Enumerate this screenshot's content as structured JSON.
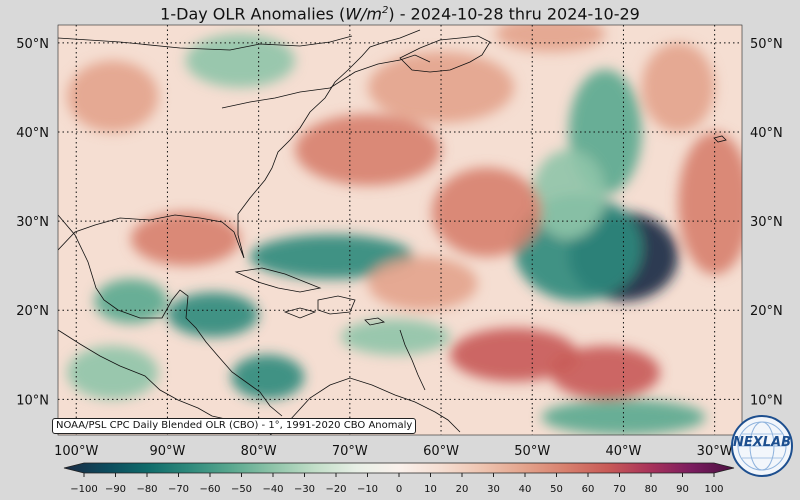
{
  "title": {
    "prefix": "1-Day OLR Anomalies (",
    "unit_base": "W/m",
    "unit_exp": "2",
    "suffix": ") - 2024-10-28 thru 2024-10-29"
  },
  "map": {
    "lat_labels": [
      "50°N",
      "40°N",
      "30°N",
      "20°N",
      "10°N"
    ],
    "lat_values": [
      50,
      40,
      30,
      20,
      10
    ],
    "lon_labels": [
      "100°W",
      "90°W",
      "80°W",
      "70°W",
      "60°W",
      "50°W",
      "40°W",
      "30°W"
    ],
    "lon_values": [
      -100,
      -90,
      -80,
      -70,
      -60,
      -50,
      -40,
      -30
    ],
    "lat_range": [
      6,
      52
    ],
    "lon_range": [
      -102,
      -27
    ]
  },
  "anomalies": [
    {
      "lon": -40,
      "lat": 26,
      "value": -90,
      "spread_lon": 6,
      "spread_lat": 5
    },
    {
      "lon": -45,
      "lat": 27,
      "value": -55,
      "spread_lon": 7,
      "spread_lat": 6
    },
    {
      "lon": -42,
      "lat": 40,
      "value": -45,
      "spread_lon": 4,
      "spread_lat": 7
    },
    {
      "lon": -46,
      "lat": 33,
      "value": -35,
      "spread_lon": 4,
      "spread_lat": 5
    },
    {
      "lon": -72,
      "lat": 26,
      "value": -55,
      "spread_lon": 9,
      "spread_lat": 2.5
    },
    {
      "lon": -85,
      "lat": 19.5,
      "value": -55,
      "spread_lon": 5,
      "spread_lat": 2.5
    },
    {
      "lon": -79,
      "lat": 12.5,
      "value": -55,
      "spread_lon": 4,
      "spread_lat": 2.5
    },
    {
      "lon": -94,
      "lat": 21,
      "value": -40,
      "spread_lon": 4,
      "spread_lat": 2.5
    },
    {
      "lon": -40,
      "lat": 8,
      "value": -50,
      "spread_lon": 9,
      "spread_lat": 2
    },
    {
      "lon": -82,
      "lat": 48,
      "value": -30,
      "spread_lon": 6,
      "spread_lat": 3
    },
    {
      "lon": -96,
      "lat": 13,
      "value": -30,
      "spread_lon": 5,
      "spread_lat": 3
    },
    {
      "lon": -65,
      "lat": 17,
      "value": -30,
      "spread_lon": 6,
      "spread_lat": 2
    },
    {
      "lon": -88,
      "lat": 28,
      "value": 40,
      "spread_lon": 6,
      "spread_lat": 3
    },
    {
      "lon": -68,
      "lat": 38,
      "value": 40,
      "spread_lon": 8,
      "spread_lat": 4
    },
    {
      "lon": -55,
      "lat": 31,
      "value": 45,
      "spread_lon": 6,
      "spread_lat": 5
    },
    {
      "lon": -60,
      "lat": 45,
      "value": 35,
      "spread_lon": 8,
      "spread_lat": 4
    },
    {
      "lon": -52,
      "lat": 15,
      "value": 50,
      "spread_lon": 7,
      "spread_lat": 3
    },
    {
      "lon": -42,
      "lat": 13,
      "value": 55,
      "spread_lon": 6,
      "spread_lat": 3
    },
    {
      "lon": -30,
      "lat": 32,
      "value": 40,
      "spread_lon": 4,
      "spread_lat": 8
    },
    {
      "lon": -34,
      "lat": 45,
      "value": 35,
      "spread_lon": 4,
      "spread_lat": 5
    },
    {
      "lon": -62,
      "lat": 23,
      "value": 25,
      "spread_lon": 6,
      "spread_lat": 3
    },
    {
      "lon": -96,
      "lat": 44,
      "value": 30,
      "spread_lon": 5,
      "spread_lat": 4
    },
    {
      "lon": -48,
      "lat": 51,
      "value": 35,
      "spread_lon": 6,
      "spread_lat": 2
    }
  ],
  "colorbar": {
    "ticks": [
      -100,
      -90,
      -80,
      -70,
      -60,
      -50,
      -40,
      -30,
      -20,
      -10,
      0,
      10,
      20,
      30,
      40,
      50,
      60,
      70,
      80,
      90,
      100
    ],
    "range": [
      -100,
      100
    ]
  },
  "colors": {
    "neg": [
      "#1a2a44",
      "#0c4a5c",
      "#0f6b6a",
      "#2f8a7c",
      "#5aa88f",
      "#8fc4a9",
      "#c2dec8",
      "#e8efe6"
    ],
    "neutral": "#faf1ec",
    "pos": [
      "#f5ded2",
      "#eec4b0",
      "#e3a38c",
      "#d77f6d",
      "#c85a57",
      "#a8325a",
      "#7a1c5f",
      "#4a1040"
    ]
  },
  "source_note": "NOAA/PSL CPC Daily Blended OLR (CBO) - 1°, 1991-2020 CBO Anomaly",
  "logo": {
    "text": "NEXLAB",
    "icon": "nexlab-globe-logo"
  }
}
